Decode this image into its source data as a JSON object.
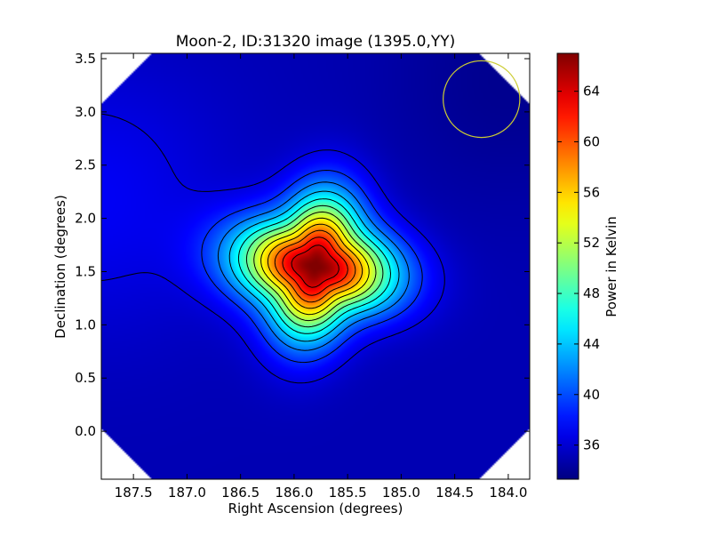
{
  "chart_data": {
    "type": "heatmap",
    "title": "Moon-2, ID:31320 image (1395.0,YY)",
    "xlabel": "Right Ascension (degrees)",
    "ylabel": "Declination (degrees)",
    "xlim": [
      187.8,
      183.8
    ],
    "ylim": [
      -0.45,
      3.55
    ],
    "x_ticks": [
      187.5,
      187.0,
      186.5,
      186.0,
      185.5,
      185.0,
      184.5,
      184.0
    ],
    "x_tick_labels": [
      "187.5",
      "187.0",
      "186.5",
      "186.0",
      "185.5",
      "185.0",
      "184.5",
      "184.0"
    ],
    "y_ticks": [
      0.0,
      0.5,
      1.0,
      1.5,
      2.0,
      2.5,
      3.0,
      3.5
    ],
    "y_tick_labels": [
      "0.0",
      "0.5",
      "1.0",
      "1.5",
      "2.0",
      "2.5",
      "3.0",
      "3.5"
    ],
    "colormap": "jet",
    "colorbar": {
      "label": "Power in Kelvin",
      "min": 33.3,
      "max": 67.0,
      "ticks": [
        36,
        40,
        44,
        48,
        52,
        56,
        60,
        64
      ],
      "tick_labels": [
        "36",
        "40",
        "44",
        "48",
        "52",
        "56",
        "60",
        "64"
      ]
    },
    "peak": {
      "ra": 185.8,
      "dec": 1.55,
      "value": 67.0
    },
    "background_level": 35.0,
    "contour_levels": [
      36.5,
      39.0,
      41.5,
      44.0,
      46.5,
      49.0,
      51.5,
      54.0,
      56.5,
      59.0,
      61.5,
      64.0
    ],
    "beam_circle": {
      "ra": 184.25,
      "dec": 3.12,
      "radius_deg": 0.36,
      "color": "#cccc33"
    },
    "grid": false,
    "legend": "none"
  }
}
